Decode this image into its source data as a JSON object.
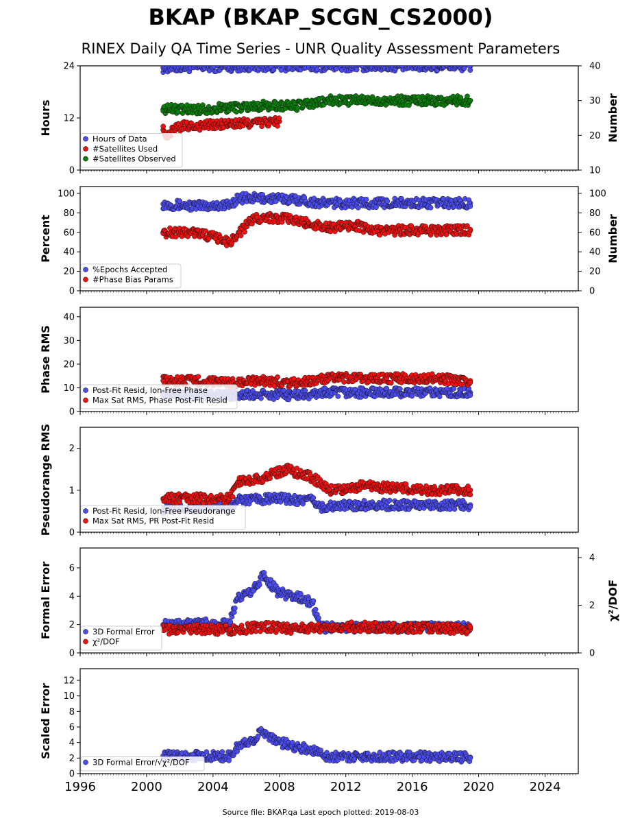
{
  "header": {
    "title": "BKAP (BKAP_SCGN_CS2000)",
    "subtitle": "RINEX Daily QA Time Series - UNR Quality Assessment Parameters"
  },
  "footer": {
    "source": "Source file: BKAP.qa Last epoch plotted: 2019-08-03"
  },
  "colors": {
    "blue": "#4b4bf0",
    "red": "#ee1111",
    "green": "#0a7d0a",
    "edge": "#111111"
  },
  "chart_data": [
    {
      "type": "scatter",
      "x_range": [
        1996,
        2026
      ],
      "x_ticks": [
        "1996",
        "2000",
        "2004",
        "2008",
        "2012",
        "2016",
        "2020",
        "2024"
      ],
      "ylabel": "Hours",
      "ylim": [
        0,
        24
      ],
      "y_ticks": [
        "0",
        "12",
        "24"
      ],
      "ylabel_right": "Number",
      "ylim_right": [
        10,
        40
      ],
      "y_ticks_right": [
        "10",
        "20",
        "30",
        "40"
      ],
      "legend_position": "lower-left",
      "series": [
        {
          "name": "Hours of Data",
          "color": "blue",
          "axis": "left",
          "x": [
            2001.0,
            2003.0,
            2005.0,
            2007.0,
            2009.0,
            2011.0,
            2013.0,
            2015.0,
            2017.0,
            2019.5
          ],
          "y": [
            23.6,
            23.7,
            23.8,
            23.9,
            23.9,
            23.9,
            23.9,
            23.9,
            23.9,
            23.9
          ]
        },
        {
          "name": "#Satellites Used",
          "color": "red",
          "axis": "right",
          "x": [
            2001.0,
            2001.2,
            2002.0,
            2008.0
          ],
          "y": [
            21.6,
            20.0,
            22.5,
            24.0
          ]
        },
        {
          "name": "#Satellites Observed",
          "color": "green",
          "axis": "right",
          "x": [
            2001.0,
            2003.0,
            2005.0,
            2007.0,
            2009.0,
            2010.0,
            2011.0,
            2013.0,
            2015.0,
            2017.0,
            2019.5
          ],
          "y": [
            27.5,
            27.5,
            28.0,
            28.5,
            28.5,
            29.0,
            30.0,
            30.0,
            30.0,
            30.0,
            30.0
          ]
        }
      ]
    },
    {
      "type": "scatter",
      "x_range": [
        1996,
        2026
      ],
      "ylabel": "Percent",
      "ylim": [
        0,
        107
      ],
      "y_ticks": [
        "0",
        "20",
        "40",
        "60",
        "80",
        "100"
      ],
      "ylabel_right": "Number",
      "ylim_right": [
        0,
        107
      ],
      "y_ticks_right": [
        "0",
        "20",
        "40",
        "60",
        "80",
        "100"
      ],
      "legend_position": "lower-left",
      "series": [
        {
          "name": "%Epochs Accepted",
          "color": "blue",
          "axis": "left",
          "x": [
            2001.0,
            2003.0,
            2005.0,
            2005.5,
            2007.0,
            2009.0,
            2010.5,
            2013.0,
            2015.0,
            2017.0,
            2019.5
          ],
          "y": [
            89,
            87,
            88,
            95,
            95,
            94,
            90,
            90,
            90,
            90,
            90
          ]
        },
        {
          "name": "#Phase Bias Params",
          "color": "red",
          "axis": "right",
          "x": [
            2001.0,
            2003.0,
            2005.0,
            2006.5,
            2008.0,
            2009.5,
            2011.0,
            2012.5,
            2013.5,
            2015.0,
            2017.0,
            2019.5
          ],
          "y": [
            60,
            60,
            50,
            75,
            75,
            70,
            65,
            68,
            62,
            62,
            62,
            62
          ]
        }
      ]
    },
    {
      "type": "scatter",
      "x_range": [
        1996,
        2026
      ],
      "ylabel": "Phase RMS",
      "ylim": [
        0,
        44
      ],
      "y_ticks": [
        "0",
        "10",
        "20",
        "30",
        "40"
      ],
      "legend_position": "lower-left",
      "series": [
        {
          "name": "Post-Fit Resid, Ion-Free Phase",
          "color": "blue",
          "axis": "left",
          "x": [
            2001.0,
            2005.0,
            2008.0,
            2010.0,
            2010.5,
            2013.0,
            2016.0,
            2019.5
          ],
          "y": [
            7,
            7,
            7,
            7,
            8,
            8,
            8,
            8
          ]
        },
        {
          "name": "Max Sat RMS, Phase Post-Fit Resid",
          "color": "red",
          "axis": "left",
          "x": [
            2001.0,
            2003.0,
            2005.0,
            2007.0,
            2009.0,
            2011.0,
            2013.0,
            2015.0,
            2017.0,
            2019.5
          ],
          "y": [
            13,
            13,
            12,
            13,
            12,
            14,
            14,
            14,
            14,
            13
          ]
        }
      ]
    },
    {
      "type": "scatter",
      "x_range": [
        1996,
        2026
      ],
      "ylabel": "Pseudorange RMS",
      "ylim": [
        0,
        2.5
      ],
      "y_ticks": [
        "0",
        "1",
        "2"
      ],
      "legend_position": "lower-left",
      "series": [
        {
          "name": "Post-Fit Resid, Ion-Free Pseudorange",
          "color": "blue",
          "axis": "left",
          "x": [
            2001.0,
            2005.0,
            2005.5,
            2008.0,
            2010.0,
            2010.5,
            2013.0,
            2016.0,
            2019.5
          ],
          "y": [
            0.55,
            0.6,
            0.75,
            0.8,
            0.75,
            0.6,
            0.65,
            0.65,
            0.65
          ]
        },
        {
          "name": "Max Sat RMS, PR Post-Fit Resid",
          "color": "red",
          "axis": "left",
          "x": [
            2001.0,
            2003.0,
            2005.0,
            2005.5,
            2007.0,
            2008.5,
            2010.0,
            2011.0,
            2013.0,
            2015.0,
            2017.0,
            2019.5
          ],
          "y": [
            0.8,
            0.8,
            0.8,
            1.2,
            1.3,
            1.5,
            1.3,
            1.0,
            1.1,
            1.05,
            1.0,
            1.0
          ]
        }
      ]
    },
    {
      "type": "scatter",
      "x_range": [
        1996,
        2026
      ],
      "ylabel": "Formal Error",
      "ylim": [
        0,
        7.4
      ],
      "y_ticks": [
        "0",
        "2",
        "4",
        "6"
      ],
      "ylabel_right": "χ²/DOF",
      "ylim_right": [
        0,
        4.4
      ],
      "y_ticks_right": [
        "0",
        "2",
        "4"
      ],
      "legend_position": "lower-left",
      "series": [
        {
          "name": "3D Formal Error",
          "color": "blue",
          "axis": "left",
          "x": [
            2001.0,
            2003.0,
            2005.0,
            2005.5,
            2006.5,
            2007.0,
            2008.0,
            2009.0,
            2010.0,
            2010.5,
            2013.0,
            2016.0,
            2019.5
          ],
          "y": [
            2.0,
            2.0,
            2.2,
            3.8,
            4.5,
            5.5,
            4.2,
            4.0,
            3.5,
            1.8,
            1.8,
            1.8,
            1.8
          ]
        },
        {
          "name": "χ²/DOF",
          "color": "red",
          "axis": "right",
          "x": [
            2001.0,
            2003.0,
            2005.0,
            2007.0,
            2009.0,
            2011.0,
            2013.0,
            2015.0,
            2017.0,
            2019.5
          ],
          "y": [
            0.95,
            1.0,
            0.95,
            1.1,
            1.0,
            1.1,
            1.1,
            1.05,
            1.05,
            1.0
          ]
        }
      ]
    },
    {
      "type": "scatter",
      "x_range": [
        1996,
        2026
      ],
      "ylabel": "Scaled Error",
      "ylim": [
        0,
        13.5
      ],
      "y_ticks": [
        "0",
        "2",
        "4",
        "6",
        "8",
        "10",
        "12"
      ],
      "legend_position": "lower-left",
      "series": [
        {
          "name": "3D Formal Error/√χ²/DOF",
          "color": "blue",
          "axis": "left",
          "x": [
            2001.0,
            2003.0,
            2005.0,
            2005.5,
            2006.5,
            2007.0,
            2008.0,
            2009.0,
            2010.0,
            2011.0,
            2013.0,
            2016.0,
            2019.5
          ],
          "y": [
            2.3,
            2.3,
            2.2,
            3.5,
            4.5,
            5.5,
            4.0,
            3.5,
            3.0,
            2.2,
            2.2,
            2.2,
            2.1
          ]
        }
      ]
    }
  ]
}
